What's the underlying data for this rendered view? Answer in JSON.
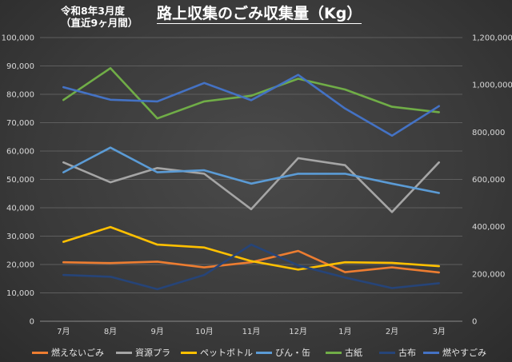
{
  "header": {
    "subtitle_line1": "令和8年3月度",
    "subtitle_line2": "（直近9ヶ月間）",
    "title": "路上収集のごみ収集量（Kg）"
  },
  "chart_data": {
    "type": "line",
    "title": "路上収集のごみ収集量（Kg）",
    "categories": [
      "7月",
      "8月",
      "9月",
      "10月",
      "11月",
      "12月",
      "1月",
      "2月",
      "3月"
    ],
    "y_left": {
      "min": 0,
      "max": 100000,
      "step": 10000,
      "tick_labels": [
        "0",
        "10,000",
        "20,000",
        "30,000",
        "40,000",
        "50,000",
        "60,000",
        "70,000",
        "80,000",
        "90,000",
        "100,000"
      ]
    },
    "y_right": {
      "min": 0,
      "max": 1200000,
      "step": 200000,
      "tick_labels": [
        "0",
        "200,000",
        "400,000",
        "600,000",
        "800,000",
        "1,000,000",
        "1,200,000"
      ]
    },
    "grid": true,
    "legend_position": "bottom",
    "series": [
      {
        "name": "燃えないごみ",
        "color": "#ed7d31",
        "axis": "left",
        "values": [
          20800,
          20500,
          21000,
          19000,
          20800,
          24800,
          17300,
          19000,
          17200
        ]
      },
      {
        "name": "資源プラ",
        "color": "#a5a5a5",
        "axis": "left",
        "values": [
          56000,
          49000,
          54000,
          52000,
          39500,
          57500,
          55000,
          38500,
          56000
        ]
      },
      {
        "name": "ペットボトル",
        "color": "#ffc000",
        "axis": "left",
        "values": [
          28000,
          33200,
          27000,
          26000,
          21200,
          18200,
          20800,
          20600,
          19400
        ]
      },
      {
        "name": "びん・缶",
        "color": "#5b9bd5",
        "axis": "left",
        "values": [
          52500,
          61200,
          52500,
          53200,
          48500,
          52000,
          52000,
          48500,
          45200
        ]
      },
      {
        "name": "古紙",
        "color": "#70ad47",
        "axis": "left",
        "values": [
          78000,
          89200,
          71500,
          77500,
          79500,
          85500,
          81700,
          75600,
          73700
        ]
      },
      {
        "name": "古布",
        "color": "#264478",
        "axis": "left",
        "values": [
          16300,
          15700,
          11300,
          16300,
          27000,
          19700,
          15400,
          11700,
          13400
        ]
      },
      {
        "name": "燃やすごみ",
        "color": "#4472c4",
        "axis": "right",
        "values": [
          990000,
          937000,
          930000,
          1008000,
          935000,
          1042000,
          900000,
          785000,
          910000
        ]
      }
    ]
  }
}
